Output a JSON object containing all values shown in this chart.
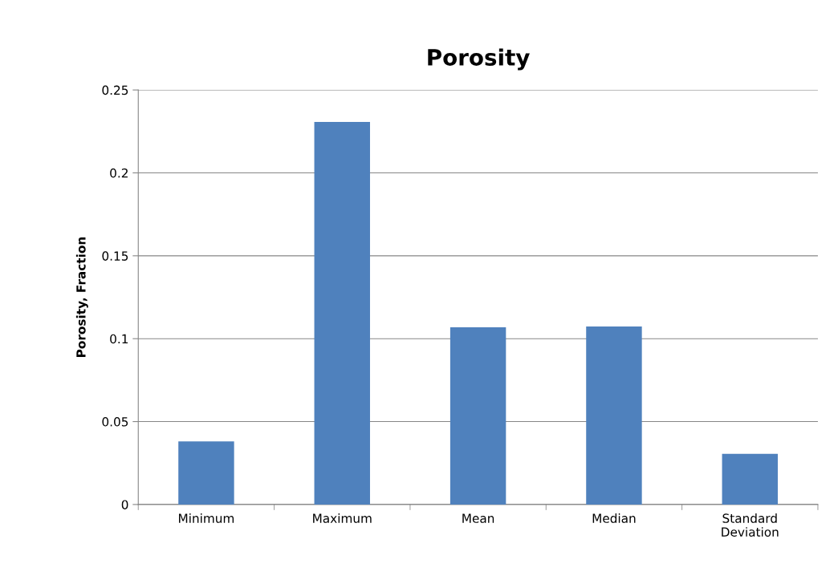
{
  "chart_data": {
    "type": "bar",
    "title": "Porosity",
    "ylabel": "Porosity, Fraction",
    "categories": [
      "Minimum",
      "Maximum",
      "Mean",
      "Median",
      "Standard Deviation"
    ],
    "values": [
      0.038,
      0.2307,
      0.1069,
      0.1073,
      0.0305
    ],
    "color": "#4f81bd",
    "ylim": [
      0,
      0.25
    ],
    "yticks": [
      0,
      0.05,
      0.1,
      0.15,
      0.2,
      0.25
    ],
    "grid": "y"
  }
}
